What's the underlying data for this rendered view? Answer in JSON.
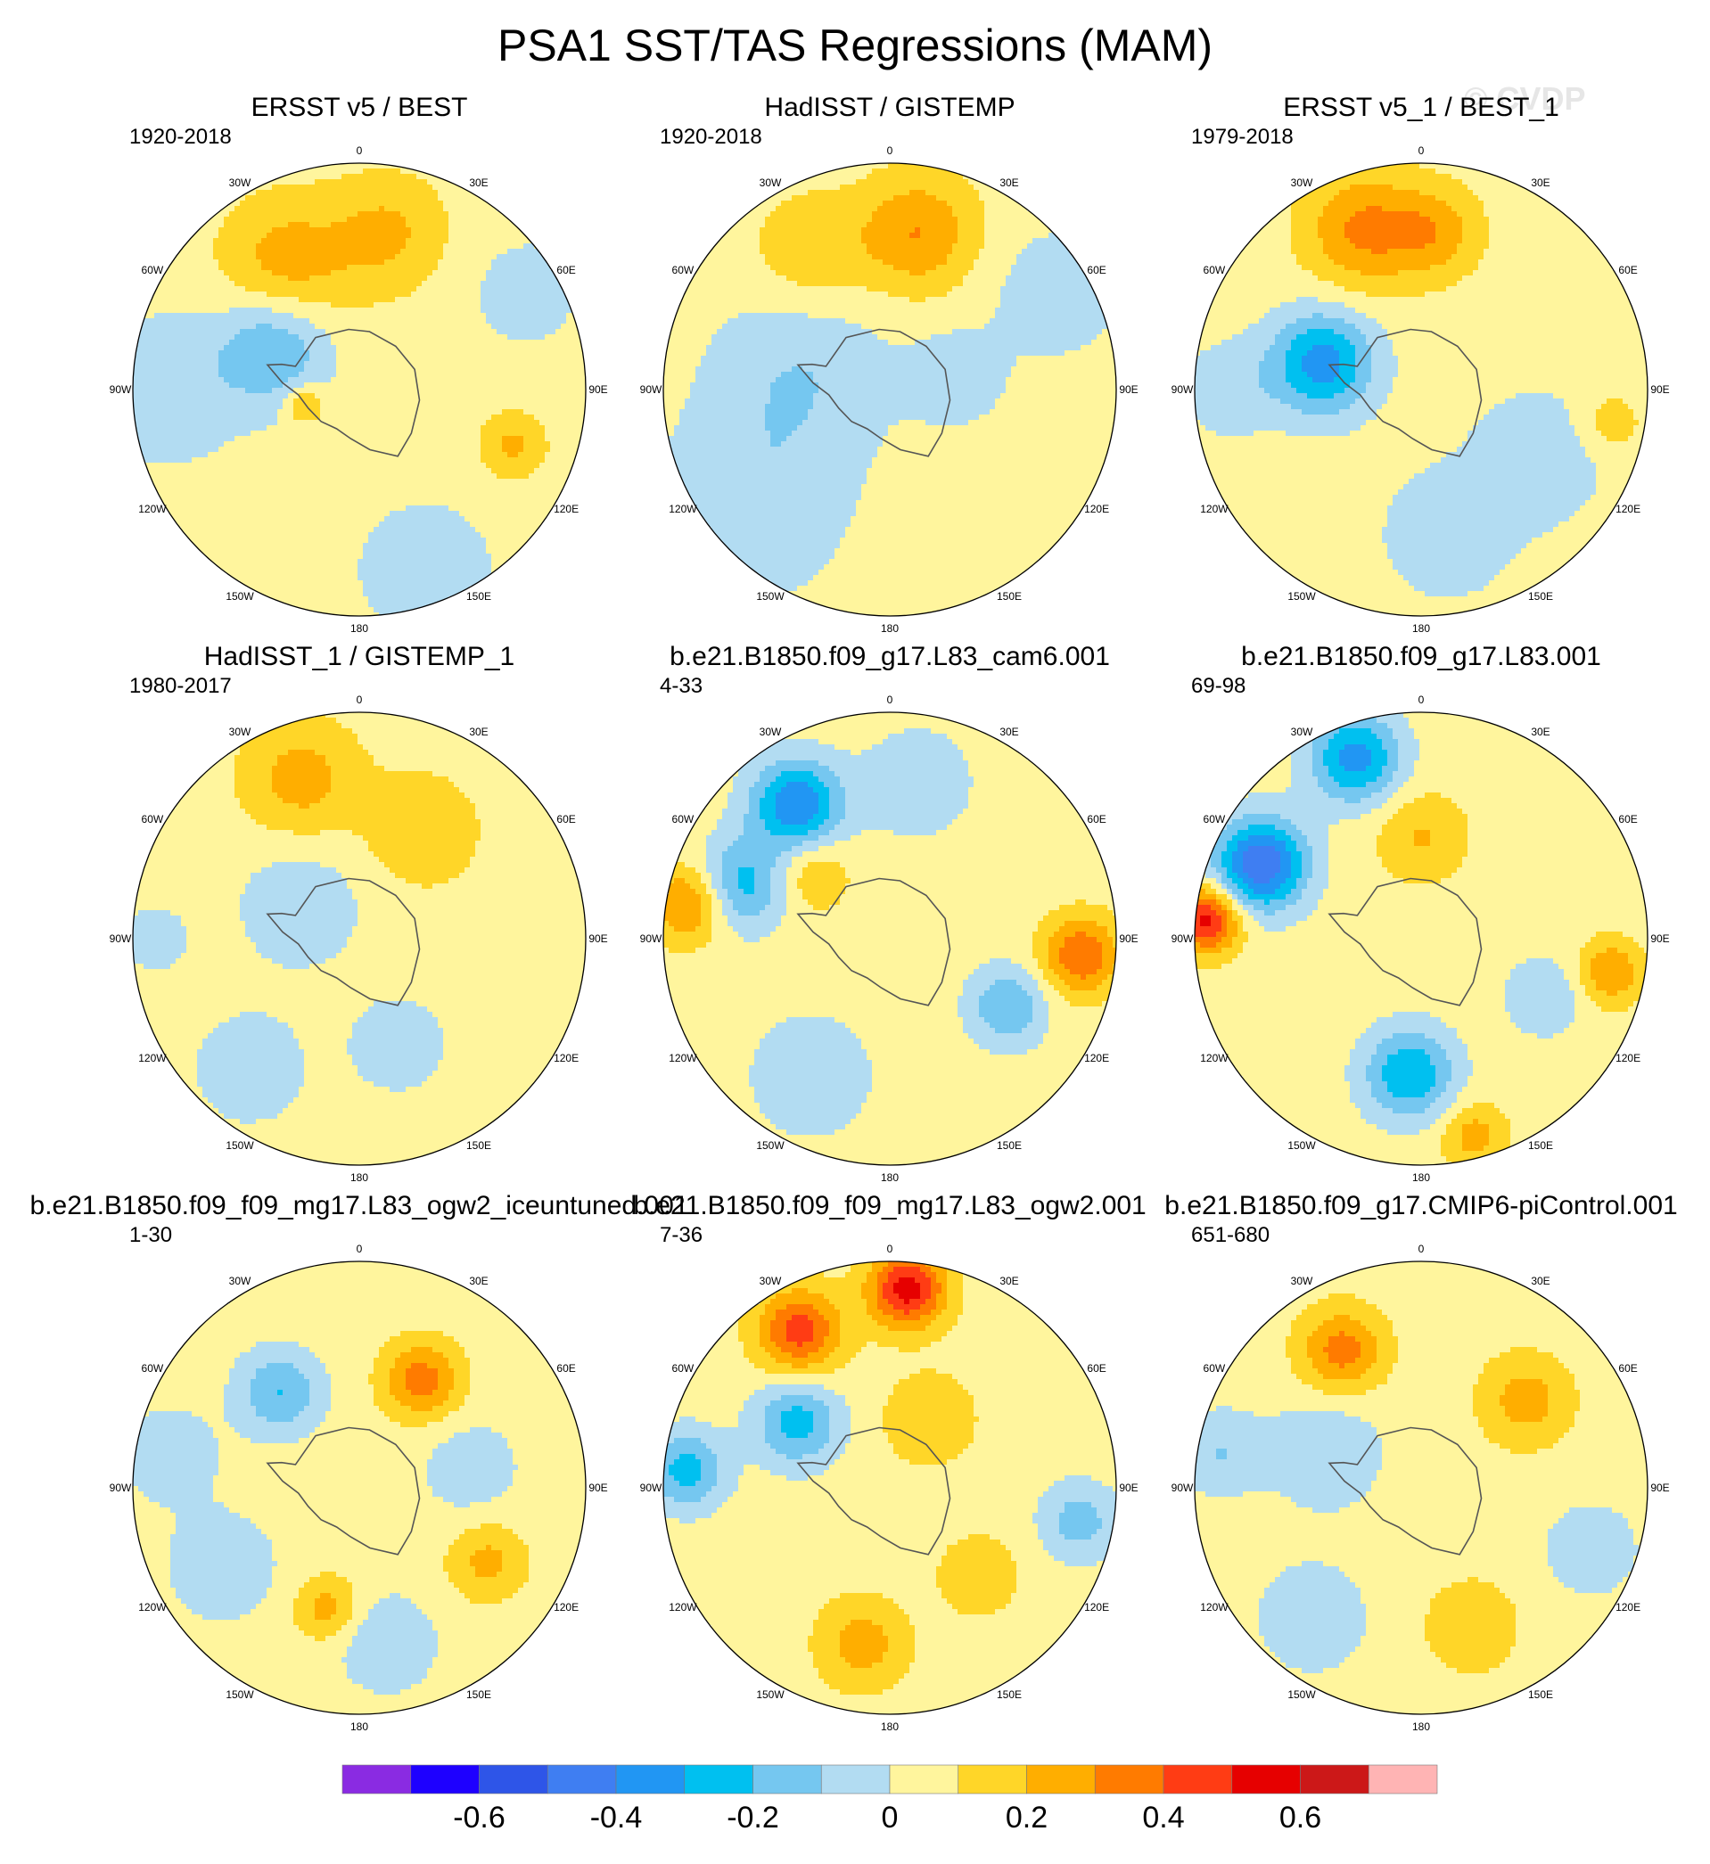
{
  "title": "PSA1 SST/TAS Regressions (MAM)",
  "watermark": "© CVDP",
  "longitude_labels": [
    "0",
    "30E",
    "60E",
    "90E",
    "120E",
    "150E",
    "180",
    "150W",
    "120W",
    "90W",
    "60W",
    "30W"
  ],
  "panels": [
    {
      "title": "ERSST v5 / BEST",
      "period": "1920-2018",
      "field": {
        "base": 0.05,
        "blobs": [
          {
            "lon": 20,
            "r": 0.85,
            "v": -0.12,
            "s": 0.22
          },
          {
            "lon": -90,
            "r": 0.85,
            "v": -0.12,
            "s": 0.25
          },
          {
            "lon": -115,
            "r": 0.42,
            "v": -0.25,
            "s": 0.17
          },
          {
            "lon": -150,
            "r": 0.65,
            "v": 0.2,
            "s": 0.2
          },
          {
            "lon": 170,
            "r": 0.7,
            "v": 0.17,
            "s": 0.18
          },
          {
            "lon": -75,
            "r": 0.25,
            "v": 0.2,
            "s": 0.06
          },
          {
            "lon": 70,
            "r": 0.72,
            "v": 0.17,
            "s": 0.1
          },
          {
            "lon": 120,
            "r": 0.85,
            "v": -0.1,
            "s": 0.18
          }
        ]
      }
    },
    {
      "title": "HadISST / GISTEMP",
      "period": "1920-2018",
      "field": {
        "base": 0.05,
        "blobs": [
          {
            "lon": -50,
            "r": 0.8,
            "v": -0.13,
            "s": 0.3
          },
          {
            "lon": -100,
            "r": 0.4,
            "v": -0.14,
            "s": 0.28
          },
          {
            "lon": 170,
            "r": 0.7,
            "v": 0.25,
            "s": 0.18
          },
          {
            "lon": 120,
            "r": 0.85,
            "v": -0.12,
            "s": 0.2
          },
          {
            "lon": 100,
            "r": 0.3,
            "v": -0.12,
            "s": 0.15
          },
          {
            "lon": -150,
            "r": 0.7,
            "v": 0.14,
            "s": 0.18
          }
        ]
      }
    },
    {
      "title": "ERSST v5_1 / BEST_1",
      "period": "1979-2018",
      "field": {
        "base": 0.05,
        "blobs": [
          {
            "lon": -105,
            "r": 0.45,
            "v": -0.4,
            "s": 0.16
          },
          {
            "lon": -160,
            "r": 0.75,
            "v": 0.27,
            "s": 0.18
          },
          {
            "lon": 175,
            "r": 0.7,
            "v": 0.2,
            "s": 0.14
          },
          {
            "lon": 10,
            "r": 0.65,
            "v": -0.13,
            "s": 0.2
          },
          {
            "lon": 60,
            "r": 0.6,
            "v": -0.12,
            "s": 0.22
          },
          {
            "lon": -90,
            "r": 0.85,
            "v": -0.12,
            "s": 0.15
          },
          {
            "lon": 80,
            "r": 0.85,
            "v": 0.12,
            "s": 0.1
          }
        ]
      }
    },
    {
      "title": "HadISST_1 / GISTEMP_1",
      "period": "1980-2017",
      "field": {
        "base": 0.05,
        "blobs": [
          {
            "lon": -160,
            "r": 0.75,
            "v": 0.2,
            "s": 0.18
          },
          {
            "lon": 150,
            "r": 0.55,
            "v": 0.15,
            "s": 0.17
          },
          {
            "lon": -120,
            "r": 0.3,
            "v": -0.12,
            "s": 0.2
          },
          {
            "lon": 20,
            "r": 0.5,
            "v": -0.12,
            "s": 0.15
          },
          {
            "lon": -40,
            "r": 0.75,
            "v": -0.1,
            "s": 0.2
          },
          {
            "lon": -90,
            "r": 0.9,
            "v": -0.12,
            "s": 0.1
          }
        ]
      }
    },
    {
      "title": "b.e21.B1850.f09_g17.L83_cam6.001",
      "period": "4-33",
      "field": {
        "base": 0.05,
        "blobs": [
          {
            "lon": -145,
            "r": 0.72,
            "v": -0.45,
            "s": 0.14
          },
          {
            "lon": -110,
            "r": 0.7,
            "v": -0.3,
            "s": 0.14
          },
          {
            "lon": -100,
            "r": 0.9,
            "v": 0.3,
            "s": 0.12
          },
          {
            "lon": 85,
            "r": 0.85,
            "v": 0.35,
            "s": 0.12
          },
          {
            "lon": 60,
            "r": 0.6,
            "v": -0.25,
            "s": 0.12
          },
          {
            "lon": -30,
            "r": 0.7,
            "v": -0.15,
            "s": 0.18
          },
          {
            "lon": 170,
            "r": 0.7,
            "v": -0.12,
            "s": 0.18
          },
          {
            "lon": -130,
            "r": 0.45,
            "v": 0.15,
            "s": 0.12
          }
        ]
      }
    },
    {
      "title": "b.e21.B1850.f09_g17.L83.001",
      "period": "69-98",
      "field": {
        "base": 0.05,
        "blobs": [
          {
            "lon": -115,
            "r": 0.78,
            "v": -0.55,
            "s": 0.14
          },
          {
            "lon": -160,
            "r": 0.85,
            "v": -0.4,
            "s": 0.14
          },
          {
            "lon": -95,
            "r": 0.95,
            "v": 0.5,
            "s": 0.1
          },
          {
            "lon": -5,
            "r": 0.6,
            "v": -0.35,
            "s": 0.14
          },
          {
            "lon": 15,
            "r": 0.9,
            "v": 0.2,
            "s": 0.1
          },
          {
            "lon": 80,
            "r": 0.85,
            "v": 0.25,
            "s": 0.1
          },
          {
            "lon": 65,
            "r": 0.6,
            "v": -0.15,
            "s": 0.12
          },
          {
            "lon": 180,
            "r": 0.45,
            "v": 0.16,
            "s": 0.14
          }
        ]
      }
    },
    {
      "title": "b.e21.B1850.f09_f09_mg17.L83_ogw2_iceuntuned.001",
      "period": "1-30",
      "field": {
        "base": 0.05,
        "blobs": [
          {
            "lon": 150,
            "r": 0.55,
            "v": 0.3,
            "s": 0.12
          },
          {
            "lon": 60,
            "r": 0.65,
            "v": 0.18,
            "s": 0.12
          },
          {
            "lon": -15,
            "r": 0.55,
            "v": 0.2,
            "s": 0.1
          },
          {
            "lon": -140,
            "r": 0.55,
            "v": -0.25,
            "s": 0.13
          },
          {
            "lon": 100,
            "r": 0.5,
            "v": -0.12,
            "s": 0.15
          },
          {
            "lon": 10,
            "r": 0.7,
            "v": -0.15,
            "s": 0.15
          },
          {
            "lon": -60,
            "r": 0.7,
            "v": -0.12,
            "s": 0.18
          },
          {
            "lon": -100,
            "r": 0.85,
            "v": -0.12,
            "s": 0.15
          }
        ]
      }
    },
    {
      "title": "b.e21.B1850.f09_f09_mg17.L83_ogw2.001",
      "period": "7-36",
      "field": {
        "base": 0.05,
        "blobs": [
          {
            "lon": 175,
            "r": 0.88,
            "v": 0.5,
            "s": 0.12
          },
          {
            "lon": -150,
            "r": 0.8,
            "v": 0.4,
            "s": 0.13
          },
          {
            "lon": -125,
            "r": 0.5,
            "v": -0.3,
            "s": 0.13
          },
          {
            "lon": -95,
            "r": 0.9,
            "v": -0.3,
            "s": 0.12
          },
          {
            "lon": 80,
            "r": 0.85,
            "v": -0.2,
            "s": 0.12
          },
          {
            "lon": -10,
            "r": 0.7,
            "v": 0.2,
            "s": 0.14
          },
          {
            "lon": 45,
            "r": 0.55,
            "v": 0.15,
            "s": 0.12
          },
          {
            "lon": 150,
            "r": 0.35,
            "v": 0.15,
            "s": 0.14
          }
        ]
      }
    },
    {
      "title": "b.e21.B1850.f09_g17.CMIP6-piControl.001",
      "period": "651-680",
      "field": {
        "base": 0.05,
        "blobs": [
          {
            "lon": -150,
            "r": 0.7,
            "v": 0.3,
            "s": 0.13
          },
          {
            "lon": 130,
            "r": 0.6,
            "v": 0.2,
            "s": 0.14
          },
          {
            "lon": -110,
            "r": 0.45,
            "v": -0.15,
            "s": 0.17
          },
          {
            "lon": 20,
            "r": 0.65,
            "v": 0.15,
            "s": 0.14
          },
          {
            "lon": -40,
            "r": 0.75,
            "v": -0.12,
            "s": 0.18
          },
          {
            "lon": -100,
            "r": 0.9,
            "v": -0.15,
            "s": 0.13
          },
          {
            "lon": 70,
            "r": 0.8,
            "v": -0.12,
            "s": 0.15
          }
        ]
      }
    }
  ],
  "colorbar": {
    "levels": [
      -0.7,
      -0.6,
      -0.5,
      -0.4,
      -0.3,
      -0.2,
      -0.1,
      0,
      0.1,
      0.2,
      0.3,
      0.4,
      0.5,
      0.6,
      0.7
    ],
    "colors": [
      "#8a2be2",
      "#1e00ff",
      "#2e55e8",
      "#3f7ef2",
      "#2196f3",
      "#00c0f0",
      "#75c7f0",
      "#b2dcf2",
      "#fff59d",
      "#ffd628",
      "#ffae00",
      "#ff7b00",
      "#ff3c14",
      "#e60000",
      "#cc1818",
      "#ffb4b4"
    ],
    "tick_labels": [
      "-0.6",
      "-0.4",
      "-0.2",
      "0",
      "0.2",
      "0.4",
      "0.6"
    ],
    "tick_values": [
      -0.6,
      -0.4,
      -0.2,
      0,
      0.2,
      0.4,
      0.6
    ]
  },
  "chart_data": {
    "type": "heatmap",
    "title": "PSA1 SST/TAS Regressions (MAM)",
    "projection": "south polar stereographic",
    "variable": "SST/TAS regression onto PSA1",
    "season": "MAM",
    "contour_levels": [
      -0.7,
      -0.6,
      -0.5,
      -0.4,
      -0.3,
      -0.2,
      -0.1,
      0,
      0.1,
      0.2,
      0.3,
      0.4,
      0.5,
      0.6,
      0.7
    ],
    "colorbar_ticks": [
      -0.6,
      -0.4,
      -0.2,
      0,
      0.2,
      0.4,
      0.6
    ],
    "panels": [
      {
        "title": "ERSST v5 / BEST",
        "period": "1920-2018"
      },
      {
        "title": "HadISST / GISTEMP",
        "period": "1920-2018"
      },
      {
        "title": "ERSST v5_1 / BEST_1",
        "period": "1979-2018"
      },
      {
        "title": "HadISST_1 / GISTEMP_1",
        "period": "1980-2017"
      },
      {
        "title": "b.e21.B1850.f09_g17.L83_cam6.001",
        "period": "4-33"
      },
      {
        "title": "b.e21.B1850.f09_g17.L83.001",
        "period": "69-98"
      },
      {
        "title": "b.e21.B1850.f09_f09_mg17.L83_ogw2_iceuntuned.001",
        "period": "1-30"
      },
      {
        "title": "b.e21.B1850.f09_f09_mg17.L83_ogw2.001",
        "period": "7-36"
      },
      {
        "title": "b.e21.B1850.f09_g17.CMIP6-piControl.001",
        "period": "651-680"
      }
    ]
  }
}
